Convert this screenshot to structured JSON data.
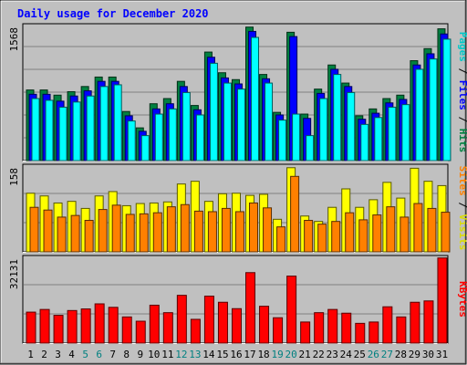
{
  "chart_data": {
    "type": "bar",
    "title": "Daily usage for December 2020",
    "categories": [
      "1",
      "2",
      "3",
      "4",
      "5",
      "6",
      "7",
      "8",
      "9",
      "10",
      "11",
      "12",
      "13",
      "14",
      "15",
      "16",
      "17",
      "18",
      "19",
      "20",
      "21",
      "22",
      "23",
      "24",
      "25",
      "26",
      "27",
      "28",
      "29",
      "30",
      "31"
    ],
    "weekend_days": [
      5,
      6,
      12,
      13,
      19,
      20,
      26,
      27
    ],
    "panels": [
      {
        "id": "hits",
        "ymax_label": "1568",
        "ymax": 1568,
        "series": [
          {
            "name": "Hits",
            "color": "#008040",
            "values": [
              820,
              820,
              760,
              800,
              860,
              970,
              970,
              570,
              380,
              660,
              720,
              920,
              640,
              1260,
              1020,
              940,
              1550,
              1000,
              560,
              1490,
              540,
              830,
              1110,
              900,
              520,
              600,
              720,
              760,
              1160,
              1300,
              1530
            ]
          },
          {
            "name": "Files",
            "color": "#0000ff",
            "values": [
              770,
              770,
              690,
              750,
              810,
              920,
              920,
              520,
              340,
              600,
              660,
              860,
              590,
              1200,
              960,
              890,
              1500,
              950,
              530,
              1440,
              490,
              780,
              1060,
              860,
              480,
              550,
              670,
              710,
              1110,
              1240,
              1470
            ]
          },
          {
            "name": "Pages",
            "color": "#00ffff",
            "values": [
              720,
              700,
              620,
              680,
              750,
              860,
              880,
              460,
              290,
              540,
              600,
              790,
              530,
              1130,
              900,
              830,
              1430,
              900,
              470,
              540,
              290,
              720,
              1000,
              790,
              420,
              500,
              620,
              650,
              1060,
              1180,
              1410
            ]
          }
        ]
      },
      {
        "id": "visits",
        "ymax_label": "158",
        "ymax": 158,
        "series": [
          {
            "name": "Visits",
            "color": "#ffff00",
            "values": [
              108,
              103,
              90,
              93,
              80,
              103,
              111,
              85,
              89,
              90,
              92,
              125,
              130,
              93,
              107,
              108,
              104,
              106,
              60,
              155,
              66,
              56,
              82,
              116,
              82,
              96,
              128,
              99,
              154,
              130,
              122
            ]
          },
          {
            "name": "Sites",
            "color": "#ff8000",
            "values": [
              82,
              77,
              64,
              67,
              58,
              78,
              86,
              69,
              70,
              72,
              83,
              87,
              75,
              74,
              80,
              74,
              90,
              81,
              46,
              139,
              58,
              51,
              56,
              72,
              59,
              68,
              83,
              64,
              89,
              80,
              73
            ]
          }
        ]
      },
      {
        "id": "kbytes",
        "ymax_label": "32131",
        "ymax": 32131,
        "series": [
          {
            "name": "KBytes",
            "color": "#ff0000",
            "values": [
              11600,
              12600,
              10400,
              12200,
              12800,
              14700,
              13400,
              9800,
              8200,
              14200,
              11400,
              17900,
              8900,
              17600,
              15300,
              12900,
              26400,
              13800,
              9500,
              25100,
              7900,
              11400,
              12600,
              11200,
              7400,
              7900,
              13600,
              9800,
              15300,
              15800,
              31900
            ]
          }
        ]
      }
    ],
    "right_labels": [
      {
        "panel": "hits",
        "parts": [
          {
            "text": "Pages",
            "color": "#00c8c8"
          },
          {
            "text": " / ",
            "color": "#000000"
          },
          {
            "text": "Files",
            "color": "#0000ff"
          },
          {
            "text": " / ",
            "color": "#000000"
          },
          {
            "text": "Hits",
            "color": "#008040"
          }
        ]
      },
      {
        "panel": "visits",
        "parts": [
          {
            "text": "Sites",
            "color": "#ff8000"
          },
          {
            "text": " / ",
            "color": "#000000"
          },
          {
            "text": "Visits",
            "color": "#dcdc00"
          }
        ]
      },
      {
        "panel": "kbytes",
        "parts": [
          {
            "text": "KBytes",
            "color": "#ff0000"
          }
        ]
      }
    ],
    "colors": {
      "background": "#c0c0c0",
      "title": "#0000ff",
      "weekday_label": "#000000",
      "weekend_label": "#008080"
    }
  }
}
